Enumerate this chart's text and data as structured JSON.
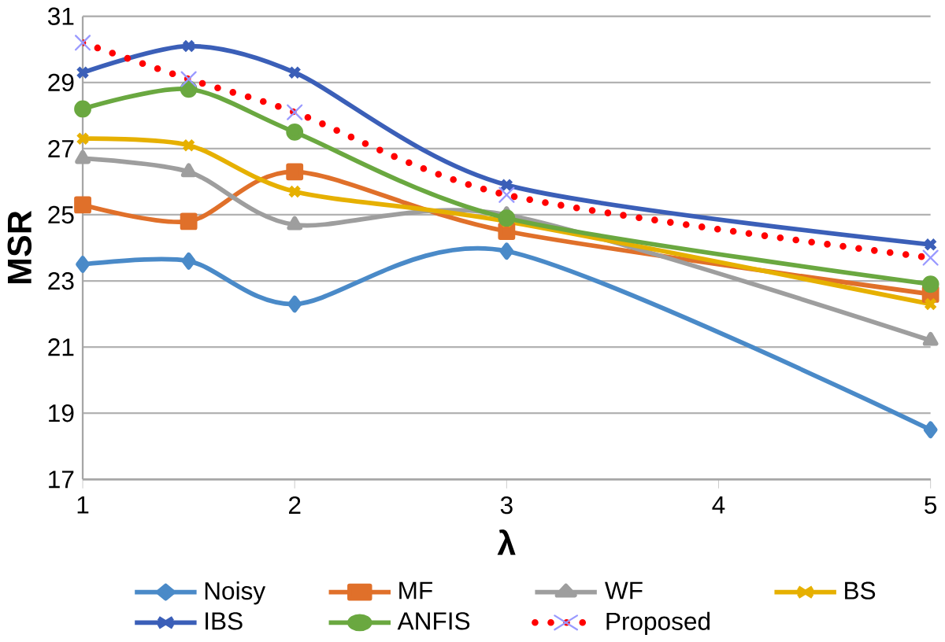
{
  "chart_data": {
    "type": "line",
    "xlabel": "λ",
    "ylabel": "MSR",
    "x": [
      1,
      1.5,
      2,
      3,
      5
    ],
    "xlim": [
      1,
      5
    ],
    "xticks": [
      1,
      2,
      3,
      4,
      5
    ],
    "ylim": [
      17,
      31
    ],
    "yticks": [
      17,
      19,
      21,
      23,
      25,
      27,
      29,
      31
    ],
    "grid": "y",
    "legend": "bottom",
    "series": [
      {
        "name": "Noisy",
        "color": "#4a8ac8",
        "marker": "diamond",
        "line_style": "solid",
        "values": [
          23.5,
          23.6,
          22.3,
          23.9,
          18.5
        ]
      },
      {
        "name": "MF",
        "color": "#e0702a",
        "marker": "square",
        "line_style": "solid",
        "values": [
          25.3,
          24.8,
          26.3,
          24.5,
          22.6
        ]
      },
      {
        "name": "WF",
        "color": "#9e9e9e",
        "marker": "triangle",
        "line_style": "solid",
        "values": [
          26.7,
          26.3,
          24.7,
          25.0,
          21.2
        ]
      },
      {
        "name": "BS",
        "color": "#e6b000",
        "marker": "cross",
        "line_style": "solid",
        "values": [
          27.3,
          27.1,
          25.7,
          24.8,
          22.3
        ]
      },
      {
        "name": "IBS",
        "color": "#3b5fb8",
        "marker": "cross",
        "line_style": "solid",
        "values": [
          29.3,
          30.1,
          29.3,
          25.9,
          24.1
        ]
      },
      {
        "name": "ANFIS",
        "color": "#6aa840",
        "marker": "circle",
        "line_style": "solid",
        "values": [
          28.2,
          28.8,
          27.5,
          24.9,
          22.9
        ]
      },
      {
        "name": "Proposed",
        "color": "#ff0000",
        "marker": "cross",
        "line_style": "dotted",
        "values": [
          30.2,
          29.1,
          28.1,
          25.6,
          23.7
        ]
      }
    ]
  }
}
